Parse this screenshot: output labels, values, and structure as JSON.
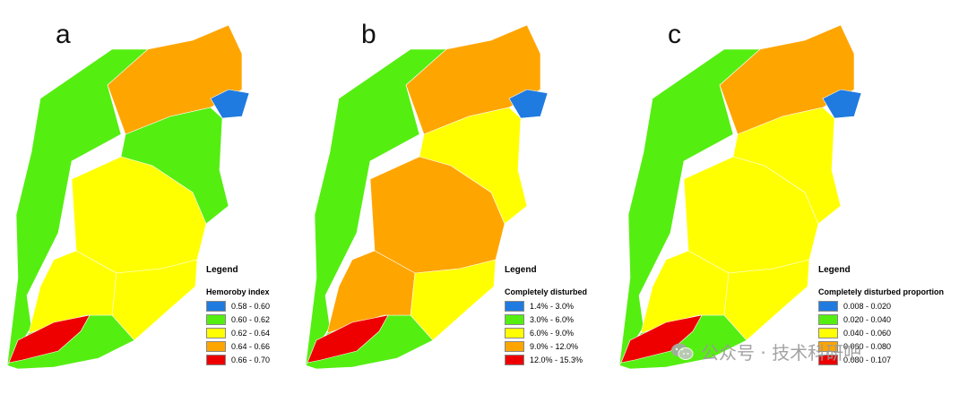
{
  "colors": {
    "blue": "#1f7be0",
    "green": "#55ee11",
    "yellow": "#ffff00",
    "orange": "#ffa500",
    "red": "#ee0000"
  },
  "panels": [
    {
      "letter": "a",
      "legend_title": "Legend",
      "legend_subtitle": "Hemoroby index",
      "items": [
        {
          "label": "0.58 - 0.60",
          "color": "#1f7be0"
        },
        {
          "label": "0.60 - 0.62",
          "color": "#55ee11"
        },
        {
          "label": "0.62 - 0.64",
          "color": "#ffff00"
        },
        {
          "label": "0.64 - 0.66",
          "color": "#ffa500"
        },
        {
          "label": "0.66 - 0.70",
          "color": "#ee0000"
        }
      ],
      "regions": {
        "NE": "blue",
        "N": "orange",
        "NW": "green",
        "EC": "green",
        "C": "yellow",
        "SW": "yellow",
        "SE": "yellow",
        "S": "red",
        "SS": "green"
      }
    },
    {
      "letter": "b",
      "legend_title": "Legend",
      "legend_subtitle": "Completely disturbed",
      "items": [
        {
          "label": "1.4% - 3.0%",
          "color": "#1f7be0"
        },
        {
          "label": "3.0% - 6.0%",
          "color": "#55ee11"
        },
        {
          "label": "6.0% - 9.0%",
          "color": "#ffff00"
        },
        {
          "label": "9.0% - 12.0%",
          "color": "#ffa500"
        },
        {
          "label": "12.0% - 15.3%",
          "color": "#ee0000"
        }
      ],
      "regions": {
        "NE": "blue",
        "N": "orange",
        "NW": "green",
        "EC": "yellow",
        "C": "orange",
        "SW": "orange",
        "SE": "yellow",
        "S": "red",
        "SS": "green"
      }
    },
    {
      "letter": "c",
      "legend_title": "Legend",
      "legend_subtitle": "Completely disturbed proportion",
      "items": [
        {
          "label": "0.008 - 0.020",
          "color": "#1f7be0"
        },
        {
          "label": "0.020 - 0.040",
          "color": "#55ee11"
        },
        {
          "label": "0.040 - 0.060",
          "color": "#ffff00"
        },
        {
          "label": "0.060 - 0.080",
          "color": "#ffa500"
        },
        {
          "label": "0.080 - 0.107",
          "color": "#ee0000"
        }
      ],
      "regions": {
        "NE": "blue",
        "N": "orange",
        "NW": "green",
        "EC": "yellow",
        "C": "yellow",
        "SW": "yellow",
        "SE": "yellow",
        "S": "red",
        "SS": "green"
      }
    }
  ],
  "watermark": {
    "text": "公众号 · 技术科研吧",
    "icon": "wechat-icon"
  }
}
